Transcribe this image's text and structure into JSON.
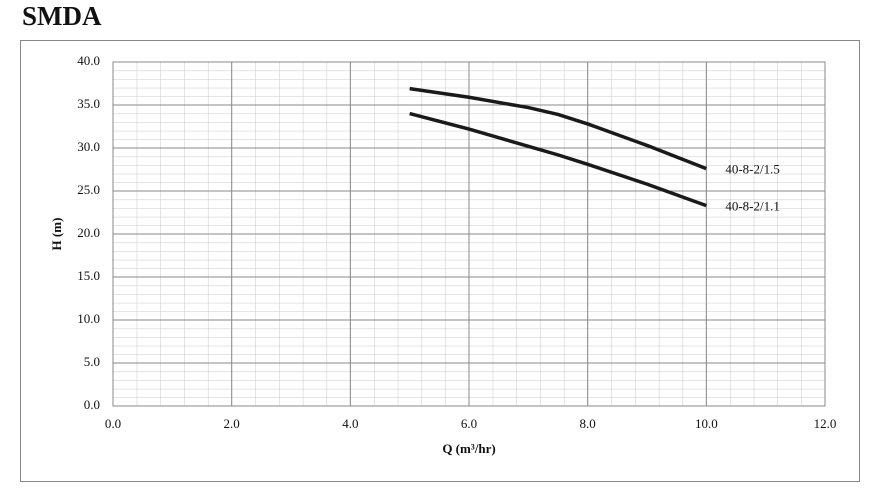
{
  "chart_data": {
    "type": "line",
    "title": "SMDA",
    "x_label": "Q (m³/hr)",
    "y_label": "H (m)",
    "xlim": [
      0,
      12
    ],
    "ylim": [
      0,
      40
    ],
    "xticks": [
      {
        "value": 0,
        "label": "0.0"
      },
      {
        "value": 2,
        "label": "2.0"
      },
      {
        "value": 4,
        "label": "4.0"
      },
      {
        "value": 6,
        "label": "6.0"
      },
      {
        "value": 8,
        "label": "8.0"
      },
      {
        "value": 10,
        "label": "10.0"
      },
      {
        "value": 12,
        "label": "12.0"
      }
    ],
    "yticks": [
      {
        "value": 0,
        "label": "0.0"
      },
      {
        "value": 5,
        "label": "5.0"
      },
      {
        "value": 10,
        "label": "10.0"
      },
      {
        "value": 15,
        "label": "15.0"
      },
      {
        "value": 20,
        "label": "20.0"
      },
      {
        "value": 25,
        "label": "25.0"
      },
      {
        "value": 30,
        "label": "30.0"
      },
      {
        "value": 35,
        "label": "35.0"
      },
      {
        "value": 40,
        "label": "40.0"
      }
    ],
    "grid": true,
    "x": [
      5,
      6,
      7,
      7.5,
      8,
      9,
      10
    ],
    "series": [
      {
        "name": "40-8-2/1.5",
        "color": "#1a1a1a",
        "values": [
          36.9,
          35.9,
          34.7,
          33.9,
          32.8,
          30.3,
          27.6
        ]
      },
      {
        "name": "40-8-2/1.1",
        "color": "#1a1a1a",
        "values": [
          34.0,
          32.2,
          30.2,
          29.2,
          28.1,
          25.8,
          23.3
        ]
      }
    ]
  }
}
